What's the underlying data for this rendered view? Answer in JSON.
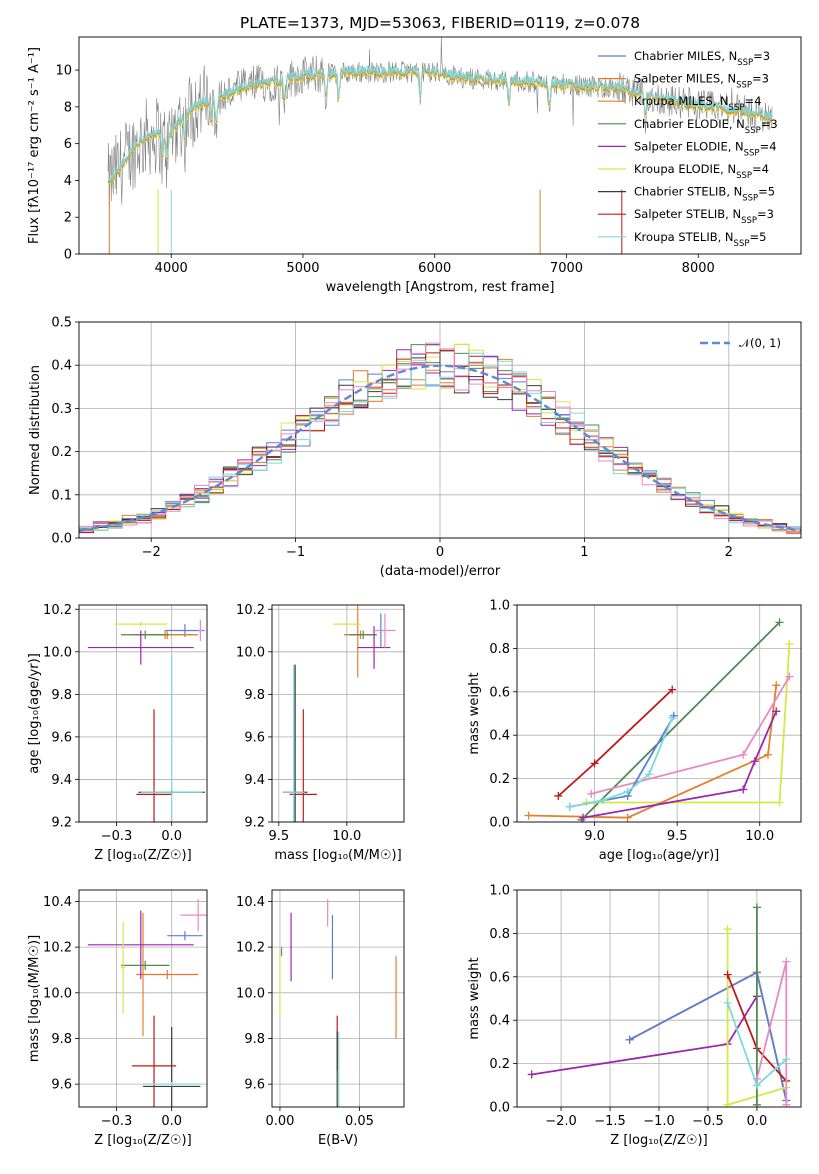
{
  "colors": {
    "chabrier_miles": "#5b7fd6",
    "salpeter_miles": "#e8772e",
    "kroupa_miles": "#e0822a",
    "chabrier_elodie": "#4f8a4f",
    "salpeter_elodie": "#9b27b0",
    "kroupa_elodie": "#d6e843",
    "chabrier_stelib": "#3a3a3a",
    "salpeter_stelib": "#c01818",
    "kroupa_stelib": "#7ed9db",
    "pink": "#e78ac3",
    "data_grey": "#808080",
    "gauss": "#5b8ad6"
  },
  "chart_data": [
    {
      "id": "spectrum",
      "type": "line",
      "title": "PLATE=1373, MJD=53063, FIBERID=0119, z=0.078",
      "xlabel": "wavelength [Angstrom, rest frame]",
      "ylabel": "Flux [fλ10⁻¹⁷ erg cm⁻² s⁻¹ A⁻¹]",
      "xlim": [
        3300,
        8780
      ],
      "ylim": [
        0,
        11.8
      ],
      "xticks": [
        4000,
        5000,
        6000,
        7000,
        8000
      ],
      "yticks": [
        0,
        2,
        4,
        6,
        8,
        10
      ],
      "grid": false,
      "legend_position": "right",
      "continuum_x": [
        3520,
        3600,
        3700,
        3800,
        3900,
        4000,
        4100,
        4200,
        4400,
        4600,
        4800,
        5000,
        5200,
        5400,
        5600,
        5800,
        6000,
        6200,
        6400,
        6600,
        6800,
        7000,
        7200,
        7400,
        7600,
        7800,
        8000,
        8200,
        8400,
        8550
      ],
      "continuum_y": [
        3.8,
        4.6,
        5.6,
        6.3,
        6.5,
        6.6,
        7.6,
        8.1,
        8.6,
        9.2,
        9.4,
        9.7,
        9.8,
        9.9,
        9.9,
        9.9,
        9.9,
        9.6,
        9.5,
        9.4,
        9.3,
        9.2,
        9.1,
        9.0,
        8.6,
        8.3,
        8.1,
        7.9,
        7.7,
        7.4
      ],
      "legend": [
        "Chabrier MILES, N_SSP=3",
        "Salpeter MILES, N_SSP=3",
        "Kroupa MILES, N_SSP=4",
        "Chabrier ELODIE, N_SSP=3",
        "Salpeter ELODIE, N_SSP=4",
        "Kroupa ELODIE, N_SSP=4",
        "Chabrier STELIB, N_SSP=5",
        "Salpeter STELIB, N_SSP=3",
        "Kroupa STELIB, N_SSP=5"
      ]
    },
    {
      "id": "residuals",
      "type": "line",
      "xlabel": "(data-model)/error",
      "ylabel": "Normed distribution",
      "xlim": [
        -2.5,
        2.5
      ],
      "ylim": [
        0,
        0.5
      ],
      "xticks": [
        -2,
        -1,
        0,
        1,
        2
      ],
      "yticks": [
        0.0,
        0.1,
        0.2,
        0.3,
        0.4,
        0.5
      ],
      "grid": true,
      "legend_position": "top-right",
      "legend": [
        "𝒩(0, 1)"
      ],
      "gaussian": {
        "mean": 0,
        "sigma": 1
      }
    },
    {
      "id": "age_vs_Z",
      "type": "scatter",
      "xlabel": "Z [log₁₀(Z/Z☉)]",
      "ylabel": "age  [log₁₀(age/yr)]",
      "xlim": [
        -0.42,
        0.16
      ],
      "ylim": [
        9.2,
        10.22
      ],
      "xticks": [
        -0.25,
        0.0
      ],
      "yticks": [
        9.2,
        9.4,
        9.6,
        9.8,
        10.0,
        10.2
      ],
      "grid": true,
      "points": [
        {
          "c": "chabrier_miles",
          "x": 0.06,
          "y": 10.1,
          "xe": 0.09,
          "ye": 0.03
        },
        {
          "c": "salpeter_miles",
          "x": -0.03,
          "y": 10.08,
          "xe": 0.15,
          "ye": 0.02
        },
        {
          "c": "kroupa_miles",
          "x": -0.02,
          "y": 10.08,
          "xe": 0.12,
          "ye": 0.02
        },
        {
          "c": "chabrier_elodie",
          "x": -0.12,
          "y": 10.08,
          "xe": 0.11,
          "ye": 0.02
        },
        {
          "c": "salpeter_elodie",
          "x": -0.14,
          "y": 10.02,
          "xe": 0.24,
          "ye": 0.08
        },
        {
          "c": "kroupa_elodie",
          "x": -0.14,
          "y": 10.13,
          "xe": 0.12,
          "ye": 0.01
        },
        {
          "c": "pink",
          "x": 0.13,
          "y": 10.1,
          "xe": 0.01,
          "ye": 0.05
        },
        {
          "c": "chabrier_stelib",
          "x": -0.0,
          "y": 9.34,
          "xe": 0.15,
          "ye": 0.01
        },
        {
          "c": "salpeter_stelib",
          "x": -0.08,
          "y": 9.33,
          "xe": 0.08,
          "ye": 0.4
        },
        {
          "c": "kroupa_stelib",
          "x": -0.0,
          "y": 9.34,
          "xe": 0.14,
          "ye": 0.65
        }
      ]
    },
    {
      "id": "age_vs_mass",
      "type": "scatter",
      "xlabel": "mass [log₁₀(M/M☉)]",
      "ylabel": "",
      "xlim": [
        9.45,
        10.42
      ],
      "ylim": [
        9.2,
        10.22
      ],
      "xticks": [
        9.5,
        10.0
      ],
      "yticks": [
        9.2,
        9.4,
        9.6,
        9.8,
        10.0,
        10.2
      ],
      "grid": true,
      "points": [
        {
          "c": "chabrier_miles",
          "x": 10.25,
          "y": 10.1,
          "xe": 0.01,
          "ye": 0.08
        },
        {
          "c": "salpeter_miles",
          "x": 10.1,
          "y": 10.08,
          "xe": 0.12,
          "ye": 0.02
        },
        {
          "c": "kroupa_miles",
          "x": 10.08,
          "y": 10.08,
          "xe": 0.1,
          "ye": 0.2
        },
        {
          "c": "chabrier_elodie",
          "x": 10.12,
          "y": 10.08,
          "xe": 0.1,
          "ye": 0.02
        },
        {
          "c": "salpeter_elodie",
          "x": 10.2,
          "y": 10.02,
          "xe": 0.12,
          "ye": 0.1
        },
        {
          "c": "kroupa_elodie",
          "x": 10.0,
          "y": 10.13,
          "xe": 0.1,
          "ye": 0.01
        },
        {
          "c": "pink",
          "x": 10.28,
          "y": 10.1,
          "xe": 0.08,
          "ye": 0.08
        },
        {
          "c": "chabrier_stelib",
          "x": 9.62,
          "y": 9.34,
          "xe": 0.09,
          "ye": 0.6
        },
        {
          "c": "salpeter_stelib",
          "x": 9.68,
          "y": 9.33,
          "xe": 0.1,
          "ye": 0.4
        },
        {
          "c": "kroupa_stelib",
          "x": 9.61,
          "y": 9.34,
          "xe": 0.08,
          "ye": 0.6
        }
      ]
    },
    {
      "id": "weight_vs_age",
      "type": "line",
      "xlabel": "age  [log₁₀(age/yr)]",
      "ylabel": "mass weight",
      "xlim": [
        8.53,
        10.25
      ],
      "ylim": [
        0,
        1.0
      ],
      "xticks": [
        9.0,
        9.5,
        10.0
      ],
      "yticks": [
        0.0,
        0.2,
        0.4,
        0.6,
        0.8,
        1.0
      ],
      "grid": true,
      "series": [
        {
          "c": "salpeter_stelib",
          "x": [
            8.78,
            9.0,
            9.47
          ],
          "y": [
            0.12,
            0.27,
            0.61
          ]
        },
        {
          "c": "chabrier_elodie",
          "x": [
            8.92,
            10.12
          ],
          "y": [
            0.01,
            0.92
          ]
        },
        {
          "c": "kroupa_elodie",
          "x": [
            8.95,
            10.12,
            10.18
          ],
          "y": [
            0.09,
            0.09,
            0.82
          ]
        },
        {
          "c": "kroupa_miles",
          "x": [
            8.6,
            9.2,
            10.05,
            10.1
          ],
          "y": [
            0.03,
            0.02,
            0.31,
            0.63
          ]
        },
        {
          "c": "salpeter_elodie",
          "x": [
            8.93,
            9.9,
            9.97,
            10.1
          ],
          "y": [
            0.02,
            0.15,
            0.28,
            0.51
          ]
        },
        {
          "c": "pink",
          "x": [
            8.98,
            9.9,
            10.18
          ],
          "y": [
            0.13,
            0.31,
            0.67
          ]
        },
        {
          "c": "chabrier_miles",
          "x": [
            8.85,
            9.2,
            9.48
          ],
          "y": [
            0.07,
            0.12,
            0.49
          ]
        },
        {
          "c": "kroupa_stelib",
          "x": [
            8.85,
            9.05,
            9.2,
            9.33,
            9.47
          ],
          "y": [
            0.07,
            0.1,
            0.14,
            0.22,
            0.48
          ]
        }
      ]
    },
    {
      "id": "mass_vs_Z",
      "type": "scatter",
      "xlabel": "Z [log₁₀(Z/Z☉)]",
      "ylabel": "mass [log₁₀(M/M☉)]",
      "xlim": [
        -0.42,
        0.16
      ],
      "ylim": [
        9.5,
        10.45
      ],
      "xticks": [
        -0.25,
        0.0
      ],
      "yticks": [
        9.6,
        9.8,
        10.0,
        10.2,
        10.4
      ],
      "grid": true,
      "points": [
        {
          "c": "chabrier_miles",
          "x": 0.06,
          "y": 10.25,
          "xe": 0.08,
          "ye": 0.02
        },
        {
          "c": "salpeter_miles",
          "x": -0.02,
          "y": 10.08,
          "xe": 0.14,
          "ye": 0.02
        },
        {
          "c": "kroupa_miles",
          "x": -0.13,
          "y": 10.08,
          "xe": 0.01,
          "ye": 0.27
        },
        {
          "c": "chabrier_elodie",
          "x": -0.12,
          "y": 10.12,
          "xe": 0.11,
          "ye": 0.02
        },
        {
          "c": "salpeter_elodie",
          "x": -0.14,
          "y": 10.21,
          "xe": 0.24,
          "ye": 0.15
        },
        {
          "c": "kroupa_elodie",
          "x": -0.22,
          "y": 10.11,
          "xe": 0.01,
          "ye": 0.2
        },
        {
          "c": "pink",
          "x": 0.12,
          "y": 10.34,
          "xe": 0.08,
          "ye": 0.07
        },
        {
          "c": "chabrier_stelib",
          "x": -0.0,
          "y": 9.59,
          "xe": 0.13,
          "ye": 0.26
        },
        {
          "c": "salpeter_stelib",
          "x": -0.08,
          "y": 9.68,
          "xe": 0.1,
          "ye": 0.22
        },
        {
          "c": "kroupa_stelib",
          "x": -0.0,
          "y": 9.6,
          "xe": 0.13,
          "ye": 0.01
        }
      ]
    },
    {
      "id": "mass_vs_ebv",
      "type": "scatter",
      "xlabel": "E(B-V)",
      "ylabel": "",
      "xlim": [
        -0.005,
        0.078
      ],
      "ylim": [
        9.5,
        10.45
      ],
      "xticks": [
        0.0,
        0.05
      ],
      "yticks": [
        9.6,
        9.8,
        10.0,
        10.2,
        10.4
      ],
      "grid": true,
      "points": [
        {
          "c": "kroupa_elodie",
          "x": 0.0,
          "y": 10.05,
          "xe": 0.0,
          "ye": 0.15
        },
        {
          "c": "chabrier_miles",
          "x": 0.001,
          "y": 10.18,
          "xe": 0.0,
          "ye": 0.02
        },
        {
          "c": "salpeter_elodie",
          "x": 0.007,
          "y": 10.2,
          "xe": 0.0,
          "ye": 0.15
        },
        {
          "c": "pink",
          "x": 0.03,
          "y": 10.35,
          "xe": 0.0,
          "ye": 0.06
        },
        {
          "c": "chabrier_miles",
          "x": 0.033,
          "y": 10.2,
          "xe": 0.0,
          "ye": 0.14
        },
        {
          "c": "salpeter_stelib",
          "x": 0.036,
          "y": 9.78,
          "xe": 0.0,
          "ye": 0.12
        },
        {
          "c": "chabrier_stelib",
          "x": 0.036,
          "y": 9.66,
          "xe": 0.0,
          "ye": 0.17
        },
        {
          "c": "kroupa_stelib",
          "x": 0.037,
          "y": 9.66,
          "xe": 0.0,
          "ye": 0.17
        },
        {
          "c": "kroupa_miles",
          "x": 0.073,
          "y": 9.98,
          "xe": 0.0,
          "ye": 0.18
        }
      ]
    },
    {
      "id": "weight_vs_Z",
      "type": "line",
      "xlabel": "Z [log₁₀(Z/Z☉)]",
      "ylabel": "mass weight",
      "xlim": [
        -2.45,
        0.45
      ],
      "ylim": [
        0,
        1.0
      ],
      "xticks": [
        -2.0,
        -1.5,
        -1.0,
        -0.5,
        0.0
      ],
      "yticks": [
        0.0,
        0.2,
        0.4,
        0.6,
        0.8,
        1.0
      ],
      "grid": true,
      "series": [
        {
          "c": "salpeter_elodie",
          "x": [
            -2.3,
            -0.3,
            0.0
          ],
          "y": [
            0.15,
            0.29,
            0.51
          ]
        },
        {
          "c": "kroupa_miles",
          "x": [
            -1.3,
            0.0,
            0.3
          ],
          "y": [
            0.31,
            0.62,
            0.03
          ]
        },
        {
          "c": "chabrier_miles",
          "x": [
            -1.3,
            0.0,
            0.3
          ],
          "y": [
            0.31,
            0.62,
            0.03
          ]
        },
        {
          "c": "kroupa_elodie",
          "x": [
            -0.3,
            -0.3,
            0.3
          ],
          "y": [
            0.82,
            0.01,
            0.09
          ]
        },
        {
          "c": "salpeter_stelib",
          "x": [
            -0.3,
            0.0,
            0.3
          ],
          "y": [
            0.61,
            0.27,
            0.12
          ]
        },
        {
          "c": "chabrier_elodie",
          "x": [
            0.0,
            0.0
          ],
          "y": [
            0.92,
            0.01
          ]
        },
        {
          "c": "pink",
          "x": [
            0.0,
            0.3,
            0.3
          ],
          "y": [
            0.13,
            0.67,
            0.01
          ]
        },
        {
          "c": "kroupa_stelib",
          "x": [
            -0.3,
            0.0,
            0.3
          ],
          "y": [
            0.48,
            0.1,
            0.22
          ]
        }
      ]
    }
  ]
}
